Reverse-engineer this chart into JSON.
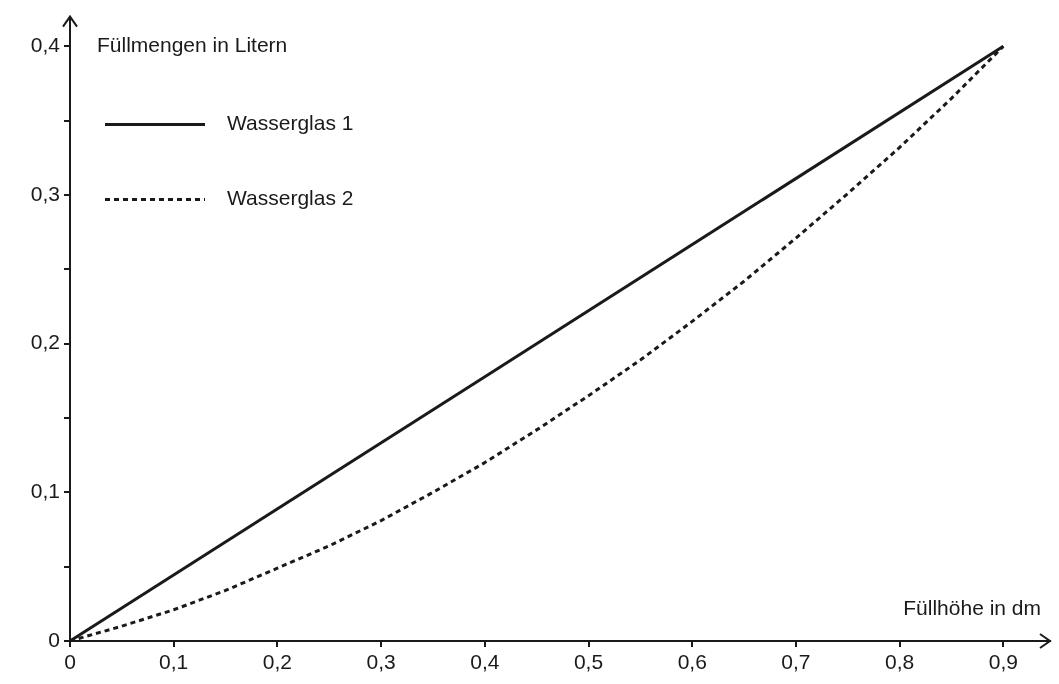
{
  "chart_data": {
    "type": "line",
    "xlabel": "Füllhöhe in dm",
    "ylabel": "Füllmengen in Litern",
    "xlim": [
      0,
      0.945
    ],
    "ylim": [
      0,
      0.42
    ],
    "xticks": [
      0,
      {
        "value": 0.1,
        "label": "0,1"
      },
      {
        "value": 0.2,
        "label": "0,2"
      },
      {
        "value": 0.3,
        "label": "0,3"
      },
      {
        "value": 0.4,
        "label": "0,4"
      },
      {
        "value": 0.5,
        "label": "0,5"
      },
      {
        "value": 0.6,
        "label": "0,6"
      },
      {
        "value": 0.7,
        "label": "0,7"
      },
      {
        "value": 0.8,
        "label": "0,8"
      },
      {
        "value": 0.9,
        "label": "0,9"
      }
    ],
    "yticks": [
      0,
      {
        "value": 0.05,
        "label": null
      },
      {
        "value": 0.1,
        "label": "0,1"
      },
      {
        "value": 0.15,
        "label": null
      },
      {
        "value": 0.2,
        "label": "0,2"
      },
      {
        "value": 0.25,
        "label": null
      },
      {
        "value": 0.3,
        "label": "0,3"
      },
      {
        "value": 0.35,
        "label": null
      },
      {
        "value": 0.4,
        "label": "0,4"
      }
    ],
    "grid": false,
    "legend": "top left",
    "marker": "none",
    "series": [
      {
        "name": "Wasserglas 1",
        "color": "#1a1a1a",
        "line_style": "solid",
        "x": [
          0,
          0.9
        ],
        "values": [
          0,
          0.4
        ]
      },
      {
        "name": "Wasserglas 2",
        "color": "#1a1a1a",
        "line_style": "dotted",
        "x": [
          0,
          0.05,
          0.1,
          0.15,
          0.2,
          0.25,
          0.3,
          0.35,
          0.4,
          0.45,
          0.5,
          0.55,
          0.6,
          0.65,
          0.7,
          0.75,
          0.8,
          0.85,
          0.9
        ],
        "values": [
          0,
          0.01,
          0.021,
          0.034,
          0.049,
          0.064,
          0.081,
          0.1,
          0.12,
          0.142,
          0.165,
          0.189,
          0.215,
          0.242,
          0.271,
          0.301,
          0.332,
          0.365,
          0.4
        ]
      }
    ]
  }
}
